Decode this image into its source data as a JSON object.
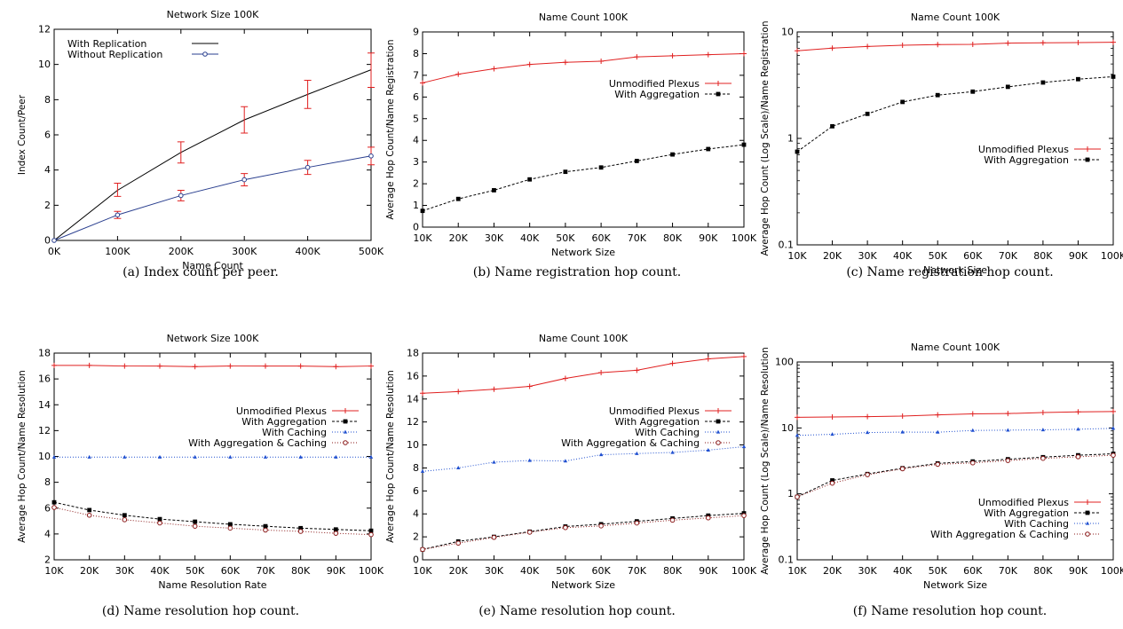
{
  "chart_data": [
    {
      "id": "a",
      "type": "line",
      "title": "Network Size 100K",
      "xlabel": "Name Count",
      "ylabel": "Index Count/Peer",
      "caption": "(a) Index count per peer.",
      "x": [
        0,
        100,
        200,
        300,
        400,
        500
      ],
      "xtick_labels": [
        "0K",
        "100K",
        "200K",
        "300K",
        "400K",
        "500K"
      ],
      "xlim": [
        0,
        500
      ],
      "ylim": [
        0,
        12
      ],
      "yscale": "linear",
      "yticks": [
        0,
        2,
        4,
        6,
        8,
        10,
        12
      ],
      "ytick_labels": [
        "0",
        "2",
        "4",
        "6",
        "8",
        "10",
        "12"
      ],
      "legend_position": "top-left",
      "series": [
        {
          "name": "With Replication",
          "color": "#000000",
          "marker": "none",
          "dash": "solid",
          "values": [
            0,
            2.85,
            5.0,
            6.85,
            8.3,
            9.7
          ],
          "err_low": [
            0,
            2.5,
            4.4,
            6.1,
            7.5,
            8.7
          ],
          "err_high": [
            0,
            3.25,
            5.6,
            7.6,
            9.1,
            10.65
          ]
        },
        {
          "name": "Without Replication",
          "color": "#2a3f8f",
          "marker": "circle",
          "dash": "solid",
          "values": [
            0,
            1.45,
            2.55,
            3.45,
            4.15,
            4.8
          ],
          "err_low": [
            0,
            1.25,
            2.25,
            3.1,
            3.75,
            4.3
          ],
          "err_high": [
            0,
            1.65,
            2.85,
            3.8,
            4.55,
            5.3
          ]
        }
      ]
    },
    {
      "id": "b",
      "type": "line",
      "title": "Name Count 100K",
      "xlabel": "Network Size",
      "ylabel": "Average Hop Count/Name Registration",
      "caption": "(b) Name registration hop count.",
      "x": [
        10,
        20,
        30,
        40,
        50,
        60,
        70,
        80,
        90,
        100
      ],
      "xtick_labels": [
        "10K",
        "20K",
        "30K",
        "40K",
        "50K",
        "60K",
        "70K",
        "80K",
        "90K",
        "100K"
      ],
      "xlim": [
        10,
        100
      ],
      "ylim": [
        0,
        9
      ],
      "yscale": "linear",
      "yticks": [
        0,
        1,
        2,
        3,
        4,
        5,
        6,
        7,
        8,
        9
      ],
      "ytick_labels": [
        "0",
        "1",
        "2",
        "3",
        "4",
        "5",
        "6",
        "7",
        "8",
        "9"
      ],
      "legend_position": "middle-right",
      "series": [
        {
          "name": "Unmodified Plexus",
          "color": "#e02020",
          "marker": "plus",
          "dash": "solid",
          "values": [
            6.65,
            7.05,
            7.3,
            7.5,
            7.6,
            7.65,
            7.85,
            7.9,
            7.95,
            8.0
          ]
        },
        {
          "name": "With Aggregation",
          "color": "#000000",
          "marker": "square",
          "dash": "dashed",
          "values": [
            0.75,
            1.3,
            1.7,
            2.2,
            2.55,
            2.75,
            3.05,
            3.35,
            3.6,
            3.8
          ]
        }
      ]
    },
    {
      "id": "c",
      "type": "line",
      "title": "Name Count 100K",
      "xlabel": "Network Size",
      "ylabel": "Average Hop Count (Log Scale)/Name Registration",
      "caption": "(c) Name registration hop count.",
      "x": [
        10,
        20,
        30,
        40,
        50,
        60,
        70,
        80,
        90,
        100
      ],
      "xtick_labels": [
        "10K",
        "20K",
        "30K",
        "40K",
        "50K",
        "60K",
        "70K",
        "80K",
        "90K",
        "100K"
      ],
      "xlim": [
        10,
        100
      ],
      "ylim": [
        0.1,
        10
      ],
      "yscale": "log",
      "yticks": [
        0.1,
        1,
        10
      ],
      "ytick_labels": [
        "0.1",
        "1",
        "10"
      ],
      "legend_position": "middle-right",
      "series": [
        {
          "name": "Unmodified Plexus",
          "color": "#e02020",
          "marker": "plus",
          "dash": "solid",
          "values": [
            6.65,
            7.05,
            7.3,
            7.5,
            7.6,
            7.65,
            7.85,
            7.9,
            7.95,
            8.0
          ]
        },
        {
          "name": "With Aggregation",
          "color": "#000000",
          "marker": "square",
          "dash": "dashed",
          "values": [
            0.75,
            1.3,
            1.7,
            2.2,
            2.55,
            2.75,
            3.05,
            3.35,
            3.6,
            3.8
          ]
        }
      ]
    },
    {
      "id": "d",
      "type": "line",
      "title": "Network Size 100K",
      "xlabel": "Name Resolution Rate",
      "ylabel": "Average Hop Count/Name Resolution",
      "caption": "(d) Name resolution hop count.",
      "x": [
        10,
        20,
        30,
        40,
        50,
        60,
        70,
        80,
        90,
        100
      ],
      "xtick_labels": [
        "10K",
        "20K",
        "30K",
        "40K",
        "50K",
        "60K",
        "70K",
        "80K",
        "90K",
        "100K"
      ],
      "xlim": [
        10,
        100
      ],
      "ylim": [
        2,
        18
      ],
      "yscale": "linear",
      "yticks": [
        2,
        4,
        6,
        8,
        10,
        12,
        14,
        16,
        18
      ],
      "ytick_labels": [
        "2",
        "4",
        "6",
        "8",
        "10",
        "12",
        "14",
        "16",
        "18"
      ],
      "legend_position": "middle-right",
      "series": [
        {
          "name": "Unmodified Plexus",
          "color": "#e02020",
          "marker": "plus",
          "dash": "solid",
          "values": [
            17.05,
            17.05,
            17.0,
            17.0,
            16.95,
            17.0,
            17.0,
            17.0,
            16.95,
            17.0
          ]
        },
        {
          "name": "With Aggregation",
          "color": "#000000",
          "marker": "square",
          "dash": "dashed",
          "values": [
            6.45,
            5.85,
            5.45,
            5.15,
            4.95,
            4.75,
            4.6,
            4.45,
            4.35,
            4.25
          ]
        },
        {
          "name": "With Caching",
          "color": "#2050d0",
          "marker": "triangle",
          "dash": "dotted",
          "values": [
            9.95,
            9.95,
            9.95,
            9.95,
            9.95,
            9.95,
            9.95,
            9.95,
            9.95,
            9.95
          ]
        },
        {
          "name": "With Aggregation & Caching",
          "color": "#8b1a1a",
          "marker": "circle",
          "dash": "dotted",
          "values": [
            6.05,
            5.45,
            5.1,
            4.85,
            4.6,
            4.45,
            4.3,
            4.2,
            4.05,
            3.95
          ]
        }
      ]
    },
    {
      "id": "e",
      "type": "line",
      "title": "Name Count 100K",
      "xlabel": "Network Size",
      "ylabel": "Average Hop Count/Name Resolution",
      "caption": "(e) Name resolution hop count.",
      "x": [
        10,
        20,
        30,
        40,
        50,
        60,
        70,
        80,
        90,
        100
      ],
      "xtick_labels": [
        "10K",
        "20K",
        "30K",
        "40K",
        "50K",
        "60K",
        "70K",
        "80K",
        "90K",
        "100K"
      ],
      "xlim": [
        10,
        100
      ],
      "ylim": [
        0,
        18
      ],
      "yscale": "linear",
      "yticks": [
        0,
        2,
        4,
        6,
        8,
        10,
        12,
        14,
        16,
        18
      ],
      "ytick_labels": [
        "0",
        "2",
        "4",
        "6",
        "8",
        "10",
        "12",
        "14",
        "16",
        "18"
      ],
      "legend_position": "middle-right",
      "series": [
        {
          "name": "Unmodified Plexus",
          "color": "#e02020",
          "marker": "plus",
          "dash": "solid",
          "values": [
            14.5,
            14.65,
            14.85,
            15.1,
            15.8,
            16.3,
            16.5,
            17.1,
            17.5,
            17.7
          ]
        },
        {
          "name": "With Aggregation",
          "color": "#000000",
          "marker": "square",
          "dash": "dashed",
          "values": [
            0.9,
            1.6,
            2.0,
            2.45,
            2.9,
            3.1,
            3.35,
            3.6,
            3.85,
            4.05
          ]
        },
        {
          "name": "With Caching",
          "color": "#2050d0",
          "marker": "triangle",
          "dash": "dotted",
          "values": [
            7.7,
            8.0,
            8.5,
            8.65,
            8.6,
            9.15,
            9.25,
            9.35,
            9.55,
            9.85
          ]
        },
        {
          "name": "With Aggregation & Caching",
          "color": "#8b1a1a",
          "marker": "circle",
          "dash": "dotted",
          "values": [
            0.9,
            1.45,
            1.95,
            2.4,
            2.8,
            2.95,
            3.2,
            3.45,
            3.65,
            3.85
          ]
        }
      ]
    },
    {
      "id": "f",
      "type": "line",
      "title": "Name Count 100K",
      "xlabel": "Network Size",
      "ylabel": "Average Hop Count (Log Scale)/Name Resolution",
      "caption": "(f) Name resolution hop count.",
      "x": [
        10,
        20,
        30,
        40,
        50,
        60,
        70,
        80,
        90,
        100
      ],
      "xtick_labels": [
        "10K",
        "20K",
        "30K",
        "40K",
        "50K",
        "60K",
        "70K",
        "80K",
        "90K",
        "100K"
      ],
      "xlim": [
        10,
        100
      ],
      "ylim": [
        0.1,
        100
      ],
      "yscale": "log",
      "yticks": [
        0.1,
        1,
        10,
        100
      ],
      "ytick_labels": [
        "0.1",
        "1",
        "10",
        "100"
      ],
      "legend_position": "bottom-right",
      "series": [
        {
          "name": "Unmodified Plexus",
          "color": "#e02020",
          "marker": "plus",
          "dash": "solid",
          "values": [
            14.5,
            14.65,
            14.85,
            15.1,
            15.8,
            16.3,
            16.5,
            17.1,
            17.5,
            17.7
          ]
        },
        {
          "name": "With Aggregation",
          "color": "#000000",
          "marker": "square",
          "dash": "dashed",
          "values": [
            0.9,
            1.6,
            2.0,
            2.45,
            2.9,
            3.1,
            3.35,
            3.6,
            3.85,
            4.05
          ]
        },
        {
          "name": "With Caching",
          "color": "#2050d0",
          "marker": "triangle",
          "dash": "dotted",
          "values": [
            7.7,
            8.0,
            8.5,
            8.65,
            8.6,
            9.15,
            9.25,
            9.35,
            9.55,
            9.85
          ]
        },
        {
          "name": "With Aggregation & Caching",
          "color": "#8b1a1a",
          "marker": "circle",
          "dash": "dotted",
          "values": [
            0.9,
            1.45,
            1.95,
            2.4,
            2.8,
            2.95,
            3.2,
            3.45,
            3.65,
            3.85
          ]
        }
      ]
    }
  ]
}
